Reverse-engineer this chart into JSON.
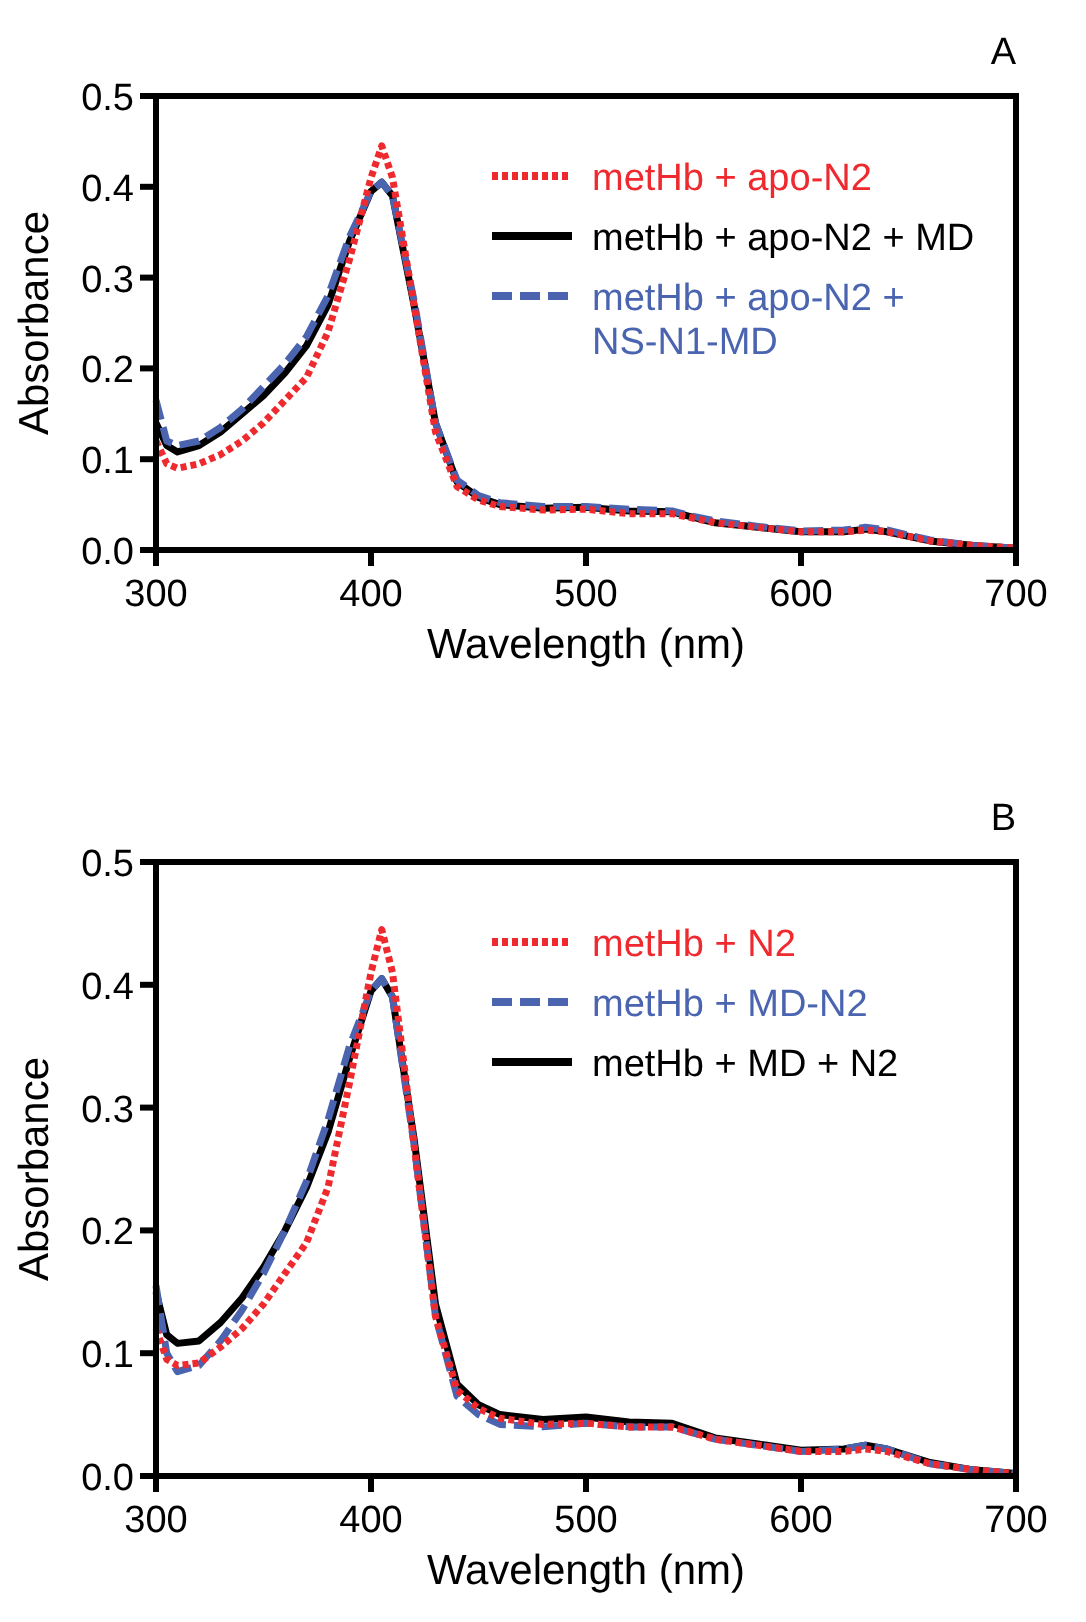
{
  "chart_data": [
    {
      "type": "line",
      "title": "A",
      "xlabel": "Wavelength (nm)",
      "ylabel": "Absorbance",
      "x": [
        300,
        305,
        310,
        320,
        330,
        340,
        350,
        360,
        370,
        380,
        390,
        400,
        405,
        410,
        420,
        430,
        440,
        450,
        460,
        480,
        500,
        520,
        540,
        550,
        560,
        580,
        600,
        620,
        630,
        640,
        660,
        680,
        700
      ],
      "xlim": [
        300,
        700
      ],
      "xticks": [
        300,
        400,
        500,
        600,
        700
      ],
      "ylim": [
        0,
        0.5
      ],
      "yticks": [
        {
          "value": 0,
          "label": "0.0"
        },
        0.1,
        0.2,
        0.3,
        0.4,
        0.5
      ],
      "legend": "top right",
      "series": [
        {
          "name": "metHb + apo-N2",
          "color": "#ee2a2f",
          "line_style": "dotted",
          "values": [
            0.12,
            0.095,
            0.09,
            0.095,
            0.105,
            0.12,
            0.14,
            0.165,
            0.19,
            0.24,
            0.32,
            0.41,
            0.445,
            0.41,
            0.27,
            0.13,
            0.07,
            0.055,
            0.048,
            0.044,
            0.045,
            0.04,
            0.04,
            0.035,
            0.03,
            0.025,
            0.02,
            0.02,
            0.022,
            0.02,
            0.01,
            0.005,
            0.002
          ]
        },
        {
          "name": "metHb + apo-N2 + MD",
          "color": "#000000",
          "line_style": "solid",
          "values": [
            0.14,
            0.115,
            0.108,
            0.115,
            0.13,
            0.15,
            0.17,
            0.195,
            0.225,
            0.27,
            0.34,
            0.395,
            0.405,
            0.39,
            0.27,
            0.14,
            0.075,
            0.058,
            0.05,
            0.046,
            0.047,
            0.043,
            0.042,
            0.036,
            0.03,
            0.025,
            0.02,
            0.02,
            0.023,
            0.02,
            0.01,
            0.005,
            0.002
          ]
        },
        {
          "name": "metHb + apo-N2 + NS-N1-MD",
          "color": "#4a64b0",
          "line_style": "dashed",
          "values": [
            0.165,
            0.12,
            0.115,
            0.12,
            0.135,
            0.155,
            0.18,
            0.205,
            0.235,
            0.28,
            0.345,
            0.395,
            0.405,
            0.39,
            0.275,
            0.14,
            0.077,
            0.06,
            0.052,
            0.048,
            0.048,
            0.045,
            0.043,
            0.037,
            0.032,
            0.026,
            0.021,
            0.022,
            0.025,
            0.022,
            0.011,
            0.005,
            0.002
          ]
        }
      ]
    },
    {
      "type": "line",
      "title": "B",
      "xlabel": "Wavelength (nm)",
      "ylabel": "Absorbance",
      "x": [
        300,
        305,
        310,
        320,
        330,
        340,
        350,
        360,
        370,
        380,
        390,
        400,
        405,
        410,
        420,
        430,
        440,
        450,
        460,
        480,
        500,
        520,
        540,
        550,
        560,
        580,
        600,
        620,
        630,
        640,
        660,
        680,
        700
      ],
      "xlim": [
        300,
        700
      ],
      "xticks": [
        300,
        400,
        500,
        600,
        700
      ],
      "ylim": [
        0,
        0.5
      ],
      "yticks": [
        {
          "value": 0,
          "label": "0.0"
        },
        0.1,
        0.2,
        0.3,
        0.4,
        0.5
      ],
      "legend": "top right",
      "series": [
        {
          "name": "metHb + N2",
          "color": "#ee2a2f",
          "line_style": "dotted",
          "values": [
            0.12,
            0.095,
            0.09,
            0.092,
            0.105,
            0.12,
            0.14,
            0.165,
            0.19,
            0.235,
            0.32,
            0.41,
            0.445,
            0.41,
            0.27,
            0.13,
            0.07,
            0.055,
            0.047,
            0.042,
            0.043,
            0.04,
            0.04,
            0.035,
            0.03,
            0.025,
            0.02,
            0.02,
            0.022,
            0.02,
            0.01,
            0.005,
            0.002
          ]
        },
        {
          "name": "metHb + MD-N2",
          "color": "#4a64b0",
          "line_style": "dashed",
          "values": [
            0.155,
            0.1,
            0.085,
            0.09,
            0.11,
            0.135,
            0.165,
            0.2,
            0.24,
            0.29,
            0.35,
            0.395,
            0.405,
            0.39,
            0.27,
            0.13,
            0.065,
            0.05,
            0.042,
            0.04,
            0.043,
            0.04,
            0.04,
            0.035,
            0.03,
            0.025,
            0.02,
            0.022,
            0.025,
            0.022,
            0.01,
            0.005,
            0.002
          ]
        },
        {
          "name": "metHb + MD + N2",
          "color": "#000000",
          "line_style": "solid",
          "values": [
            0.15,
            0.115,
            0.108,
            0.11,
            0.125,
            0.145,
            0.17,
            0.2,
            0.235,
            0.28,
            0.34,
            0.395,
            0.405,
            0.39,
            0.275,
            0.14,
            0.075,
            0.058,
            0.05,
            0.046,
            0.048,
            0.044,
            0.043,
            0.037,
            0.031,
            0.026,
            0.021,
            0.022,
            0.025,
            0.022,
            0.011,
            0.005,
            0.002
          ]
        }
      ]
    }
  ]
}
